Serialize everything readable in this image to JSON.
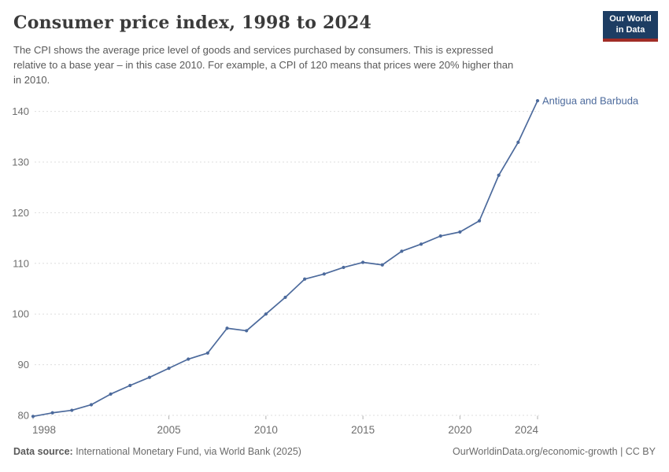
{
  "header": {
    "title": "Consumer price index, 1998 to 2024",
    "subtitle_lines": [
      "The CPI shows the average price level of goods and services purchased by consumers. This is expressed",
      "relative to a base year – in this case 2010. For example, a CPI of 120 means that prices were 20% higher than",
      "in 2010."
    ],
    "logo": {
      "line1": "Our World",
      "line2": "in Data"
    }
  },
  "chart_data": {
    "type": "line",
    "title": "Consumer price index, 1998 to 2024",
    "x": [
      1998,
      1999,
      2000,
      2001,
      2002,
      2003,
      2004,
      2005,
      2006,
      2007,
      2008,
      2009,
      2010,
      2011,
      2012,
      2013,
      2014,
      2015,
      2016,
      2017,
      2018,
      2019,
      2020,
      2021,
      2022,
      2023,
      2024
    ],
    "series": [
      {
        "name": "Antigua and Barbuda",
        "values": [
          79.8,
          80.5,
          81.0,
          82.1,
          84.2,
          85.9,
          87.5,
          89.3,
          91.1,
          92.3,
          97.2,
          96.7,
          100.0,
          103.3,
          106.9,
          107.9,
          109.2,
          110.2,
          109.7,
          112.4,
          113.8,
          115.4,
          116.2,
          118.4,
          127.4,
          133.9,
          142.1
        ]
      }
    ],
    "xlabel": "",
    "ylabel": "",
    "xlim": [
      1998,
      2024
    ],
    "ylim": [
      80,
      143
    ],
    "xticks": [
      1998,
      2005,
      2010,
      2015,
      2020,
      2024
    ],
    "yticks": [
      80,
      90,
      100,
      110,
      120,
      130,
      140
    ],
    "grid": "horizontal-dashed",
    "legend_position": "end-of-line-label",
    "end_label": "Antigua and Barbuda"
  },
  "footer": {
    "source_label": "Data source:",
    "source_text": " International Monetary Fund, via World Bank (2025)",
    "right_text": "OurWorldinData.org/economic-growth | CC BY"
  },
  "colors": {
    "line": "#4C6A9C",
    "grid": "#dddddd",
    "tick": "#b0b0b0",
    "axis_text": "#6e6e6e",
    "logo_bg": "#1d3d63",
    "logo_accent": "#a02c26"
  }
}
